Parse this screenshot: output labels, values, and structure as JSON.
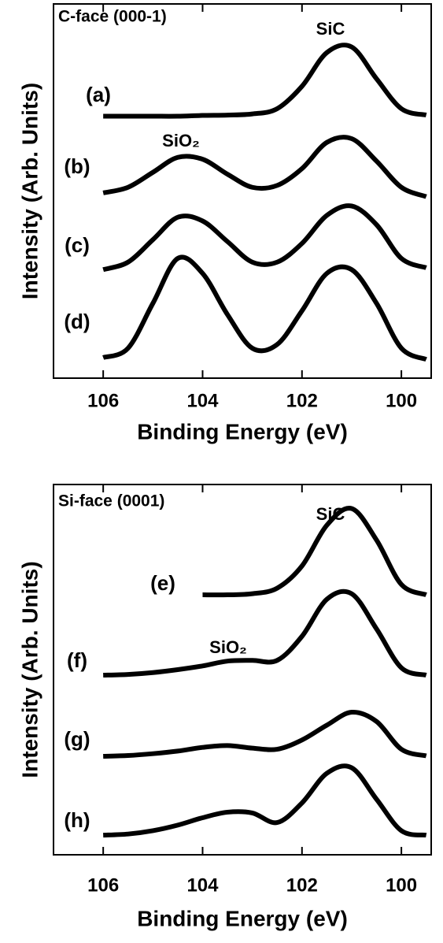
{
  "chart_data": [
    {
      "type": "line",
      "title": "C-face (000-1)",
      "xlabel": "Binding Energy (eV)",
      "ylabel": "Intensity (Arb. Units)",
      "annotations": [
        "SiC",
        "SiO₂"
      ],
      "x": [
        106,
        105.5,
        105,
        104.5,
        104,
        103.5,
        103,
        102.5,
        102,
        101.5,
        101,
        100.5,
        100,
        99.5
      ],
      "xlim": [
        107,
        99.4
      ],
      "xticks": [
        106,
        104,
        102,
        100
      ],
      "ylim": [
        0,
        100
      ],
      "series": [
        {
          "name": "(a)",
          "color": "#000000",
          "values": [
            70,
            70,
            70,
            70,
            70.2,
            70.3,
            70.6,
            72,
            78,
            87,
            88.5,
            80,
            72,
            70.3
          ]
        },
        {
          "name": "(b)",
          "color": "#000000",
          "values": [
            49.5,
            51,
            55,
            59,
            58.5,
            54.5,
            51,
            51.5,
            56,
            63,
            64,
            58,
            51,
            48.5
          ]
        },
        {
          "name": "(c)",
          "color": "#000000",
          "values": [
            29,
            31,
            37,
            43,
            42,
            36.5,
            31,
            31,
            36,
            43.5,
            46,
            41,
            32,
            29.5
          ]
        },
        {
          "name": "(d)",
          "color": "#000000",
          "values": [
            5.5,
            8,
            20,
            32,
            28,
            17,
            8,
            9,
            18,
            28,
            29,
            20,
            8,
            5
          ]
        }
      ]
    },
    {
      "type": "line",
      "title": "Si-face (0001)",
      "xlabel": "Binding Energy (eV)",
      "ylabel": "Intensity (Arb. Units)",
      "annotations": [
        "SiC",
        "SiO₂"
      ],
      "x": [
        106,
        105.5,
        105,
        104.5,
        104,
        103.5,
        103,
        102.5,
        102,
        101.5,
        101,
        100.5,
        100,
        99.5
      ],
      "xlim": [
        107,
        99.4
      ],
      "xticks": [
        106,
        104,
        102,
        100
      ],
      "ylim": [
        0,
        100
      ],
      "series": [
        {
          "name": "(e)",
          "color": "#000000",
          "values": [
            null,
            null,
            null,
            null,
            70.2,
            70.2,
            70.5,
            72,
            78,
            89,
            93.5,
            85,
            73,
            70.2
          ]
        },
        {
          "name": "(f)",
          "color": "#000000",
          "values": [
            48.5,
            48.7,
            49.2,
            50,
            51,
            52.3,
            52.5,
            52.5,
            59,
            69,
            70.5,
            61,
            50.5,
            48.5
          ]
        },
        {
          "name": "(g)",
          "color": "#000000",
          "values": [
            26.6,
            26.8,
            27.3,
            28,
            29,
            29.5,
            28.8,
            28.5,
            31,
            35,
            38.5,
            36,
            28.5,
            26.7
          ]
        },
        {
          "name": "(h)",
          "color": "#000000",
          "values": [
            5.3,
            5.6,
            6.5,
            8,
            10,
            11.5,
            11.3,
            8.7,
            14,
            22,
            23.5,
            15,
            6.5,
            5.3
          ]
        }
      ]
    }
  ]
}
